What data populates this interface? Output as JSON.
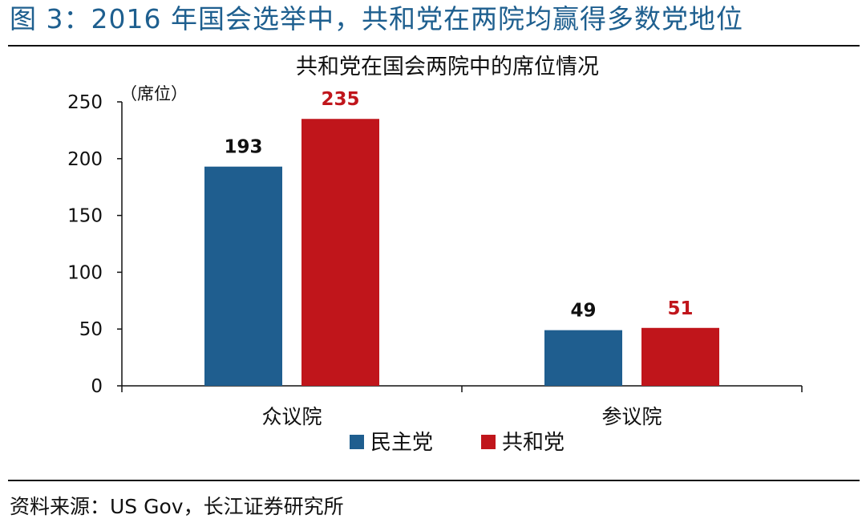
{
  "figure_title": "图 3：2016 年国会选举中，共和党在两院均赢得多数党地位",
  "source_note": "资料来源：US Gov，长江证券研究所",
  "colors": {
    "democrat": "#1f5e8f",
    "republican": "#c0151b",
    "title": "#1e5f8f",
    "republican_label": "#c0151b"
  },
  "chart_data": {
    "type": "bar",
    "title": "共和党在国会两院中的席位情况",
    "ylabel": "（席位）",
    "xlabel": "",
    "categories": [
      "众议院",
      "参议院"
    ],
    "series": [
      {
        "name": "民主党",
        "values": [
          193,
          49
        ]
      },
      {
        "name": "共和党",
        "values": [
          235,
          51
        ]
      }
    ],
    "ylim": [
      0,
      250
    ],
    "yticks": [
      0,
      50,
      100,
      150,
      200,
      250
    ],
    "data_labels": true,
    "grid": false,
    "legend": "bottom-center"
  }
}
